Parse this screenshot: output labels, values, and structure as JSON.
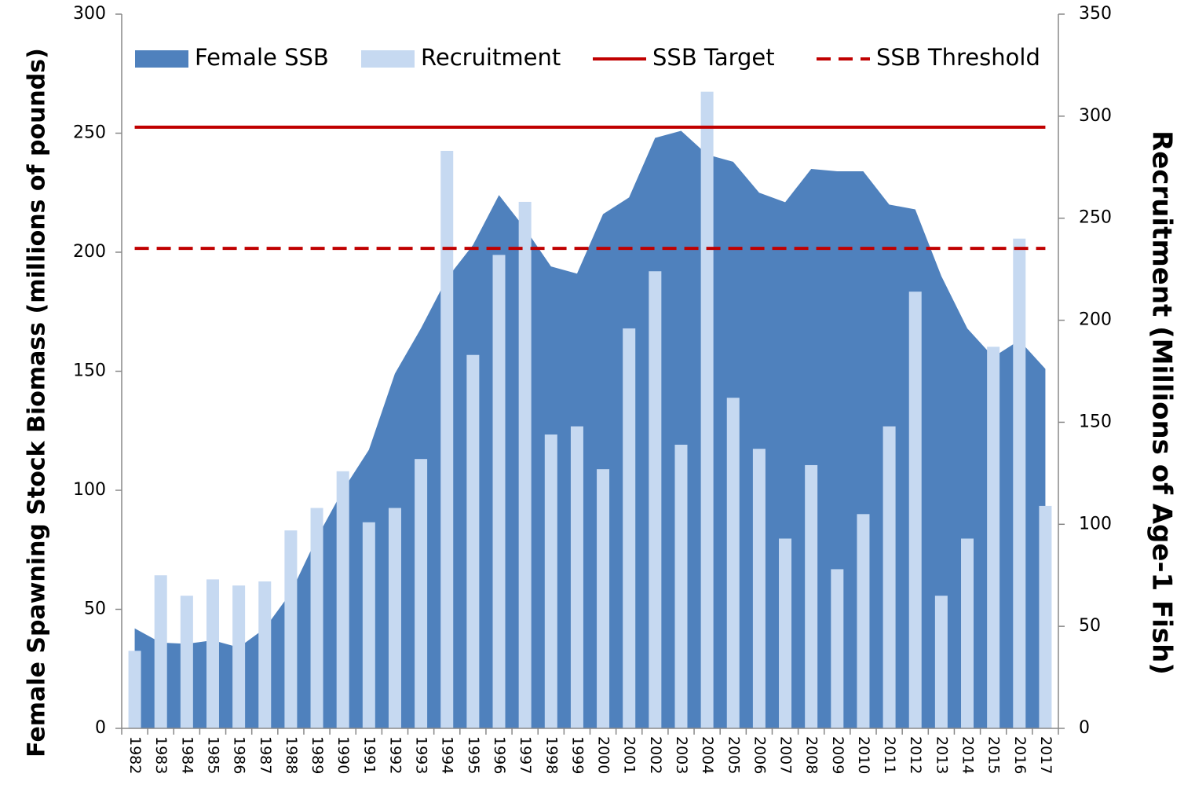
{
  "chart_data": {
    "type": "combo",
    "categories": [
      "1982",
      "1983",
      "1984",
      "1985",
      "1986",
      "1987",
      "1988",
      "1989",
      "1990",
      "1991",
      "1992",
      "1993",
      "1994",
      "1995",
      "1996",
      "1997",
      "1998",
      "1999",
      "2000",
      "2001",
      "2002",
      "2003",
      "2004",
      "2005",
      "2006",
      "2007",
      "2008",
      "2009",
      "2010",
      "2011",
      "2012",
      "2013",
      "2014",
      "2015",
      "2016",
      "2017"
    ],
    "ylabel": "Female Spawning Stock Biomass (millions of pounds)",
    "y2label": "Recruitment (Millions of Age-1 Fish)",
    "ylim": [
      0,
      300
    ],
    "yticks": [
      0,
      50,
      100,
      150,
      200,
      250,
      300
    ],
    "y2lim": [
      0,
      350
    ],
    "y2ticks": [
      0,
      50,
      100,
      150,
      200,
      250,
      300,
      350
    ],
    "legend": "top-left",
    "series": [
      {
        "name": "Female SSB",
        "type": "area",
        "color": "#4f81bd",
        "values": [
          42,
          36,
          35.5,
          37,
          34,
          42,
          57,
          80,
          100,
          117,
          149,
          168,
          189,
          203,
          224,
          210,
          194,
          191,
          216,
          223,
          248,
          251,
          241,
          238,
          225,
          221,
          235,
          234,
          234,
          220,
          218,
          190,
          168,
          156,
          163,
          151
        ]
      },
      {
        "name": "Recruitment",
        "type": "bar",
        "axis": "y2",
        "color": "#c6d9f1",
        "values": [
          38,
          75,
          65,
          73,
          70,
          72,
          97,
          108,
          126,
          101,
          108,
          132,
          283,
          183,
          232,
          258,
          144,
          148,
          127,
          196,
          224,
          139,
          312,
          162,
          137,
          93,
          129,
          78,
          105,
          148,
          214,
          65,
          93,
          187,
          240,
          109
        ]
      },
      {
        "name": "SSB Target",
        "type": "hline",
        "color": "#c00000",
        "value": 252.5
      },
      {
        "name": "SSB Threshold",
        "type": "hline",
        "color": "#c00000",
        "dashed": true,
        "value": 201.6
      }
    ]
  }
}
